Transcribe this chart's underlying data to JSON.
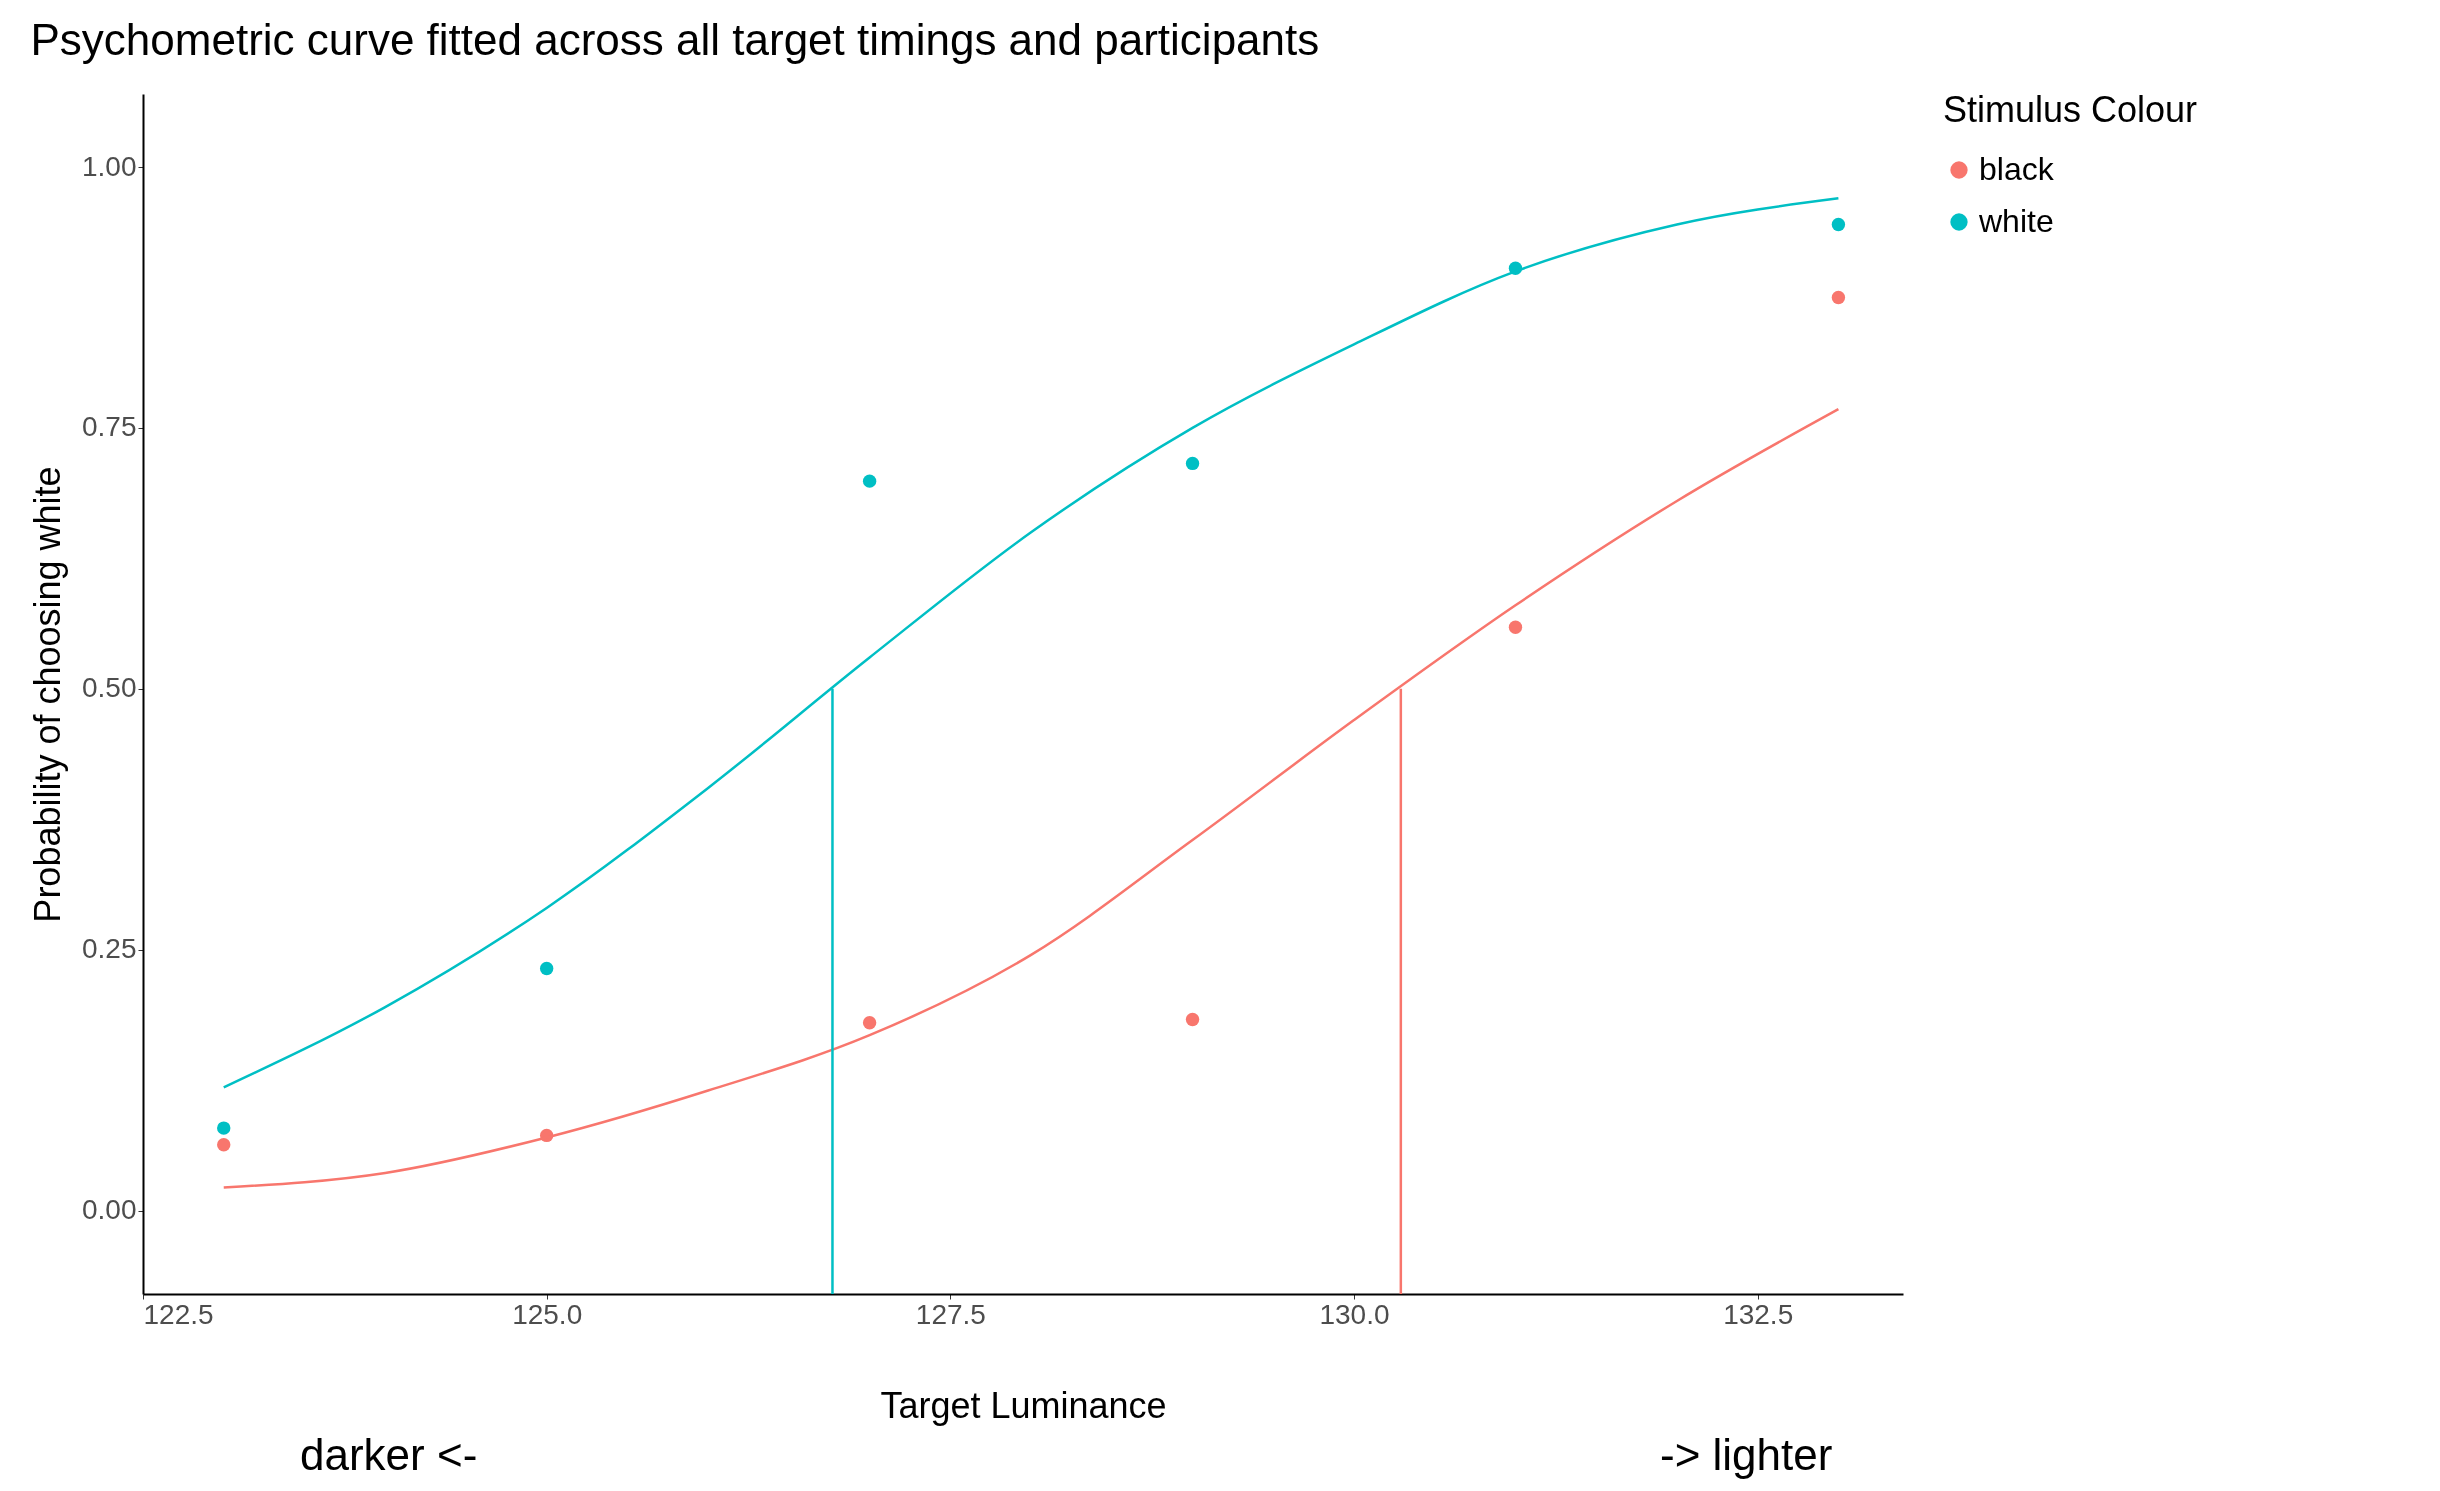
{
  "chart_data": {
    "type": "scatter",
    "title": "Psychometric curve fitted across all target timings and participants",
    "xlabel": "Target Luminance",
    "ylabel": "Probability of choosing white",
    "legend_title": "Stimulus Colour",
    "legend": "right",
    "grid": false,
    "line_style": "solid",
    "xlim": [
      122.5,
      133.4
    ],
    "ylim": [
      -0.08,
      1.07
    ],
    "xticks": [
      122.5,
      {
        "value": 125,
        "label": "125.0"
      },
      127.5,
      {
        "value": 130,
        "label": "130.0"
      },
      132.5
    ],
    "yticks": [
      {
        "value": 0,
        "label": "0.00"
      },
      {
        "value": 0.25,
        "label": "0.25"
      },
      {
        "value": 0.5,
        "label": "0.50"
      },
      {
        "value": 0.75,
        "label": "0.75"
      },
      {
        "value": 1,
        "label": "1.00"
      }
    ],
    "series": [
      {
        "name": "black",
        "marker": "circle",
        "color": "#f8766d",
        "x": [
          123,
          125,
          127,
          129,
          131,
          133
        ],
        "values": [
          0.063,
          0.072,
          0.18,
          0.183,
          0.559,
          0.875
        ]
      },
      {
        "name": "white",
        "marker": "circle",
        "color": "#00bfc4",
        "x": [
          123,
          125,
          127,
          129,
          131,
          133
        ],
        "values": [
          0.079,
          0.232,
          0.699,
          0.716,
          0.903,
          0.945
        ]
      },
      {
        "type": "line",
        "color": "#f8766d",
        "x": [
          123,
          124,
          125,
          126,
          127,
          128,
          129,
          130,
          131,
          132,
          133
        ],
        "values": [
          0.022,
          0.036,
          0.07,
          0.115,
          0.168,
          0.245,
          0.355,
          0.47,
          0.58,
          0.68,
          0.768
        ]
      },
      {
        "type": "line",
        "color": "#00bfc4",
        "x": [
          123,
          124,
          125,
          126,
          127,
          128,
          129,
          130,
          131,
          132,
          133
        ],
        "values": [
          0.118,
          0.195,
          0.29,
          0.405,
          0.53,
          0.65,
          0.75,
          0.83,
          0.9,
          0.945,
          0.97
        ]
      },
      {
        "type": "line",
        "color": "#f8766d",
        "x": [
          130.29,
          130.29
        ],
        "values": [
          -0.08,
          0.5
        ]
      },
      {
        "type": "line",
        "color": "#00bfc4",
        "x": [
          126.77,
          126.77
        ],
        "values": [
          -0.08,
          0.5
        ]
      }
    ],
    "annotations": [
      "darker <-",
      "-> lighter"
    ]
  }
}
